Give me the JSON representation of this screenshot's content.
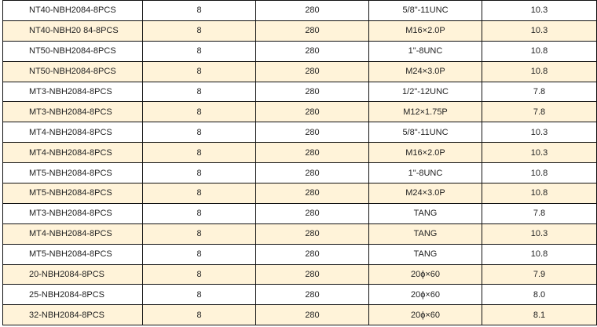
{
  "colors": {
    "stripe": "#fff3d9",
    "border": "#111111"
  },
  "rows": [
    [
      "NT40-NBH2084-8PCS",
      "8",
      "280",
      "5/8\"-11UNC",
      "10.3"
    ],
    [
      "NT40-NBH20 84-8PCS",
      "8",
      "280",
      "M16×2.0P",
      "10.3"
    ],
    [
      "NT50-NBH2084-8PCS",
      "8",
      "280",
      "1\"-8UNC",
      "10.8"
    ],
    [
      "NT50-NBH2084-8PCS",
      "8",
      "280",
      "M24×3.0P",
      "10.8"
    ],
    [
      "MT3-NBH2084-8PCS",
      "8",
      "280",
      "1/2\"-12UNC",
      "7.8"
    ],
    [
      "MT3-NBH2084-8PCS",
      "8",
      "280",
      "M12×1.75P",
      "7.8"
    ],
    [
      "MT4-NBH2084-8PCS",
      "8",
      "280",
      "5/8\"-11UNC",
      "10.3"
    ],
    [
      "MT4-NBH2084-8PCS",
      "8",
      "280",
      "M16×2.0P",
      "10.3"
    ],
    [
      "MT5-NBH2084-8PCS",
      "8",
      "280",
      "1\"-8UNC",
      "10.8"
    ],
    [
      "MT5-NBH2084-8PCS",
      "8",
      "280",
      "M24×3.0P",
      "10.8"
    ],
    [
      "MT3-NBH2084-8PCS",
      "8",
      "280",
      "TANG",
      "7.8"
    ],
    [
      "MT4-NBH2084-8PCS",
      "8",
      "280",
      "TANG",
      "10.3"
    ],
    [
      "MT5-NBH2084-8PCS",
      "8",
      "280",
      "TANG",
      "10.8"
    ],
    [
      "20-NBH2084-8PCS",
      "8",
      "280",
      "20ϕ×60",
      "7.9"
    ],
    [
      "25-NBH2084-8PCS",
      "8",
      "280",
      "20ϕ×60",
      "8.0"
    ],
    [
      "32-NBH2084-8PCS",
      "8",
      "280",
      "20ϕ×60",
      "8.1"
    ]
  ]
}
